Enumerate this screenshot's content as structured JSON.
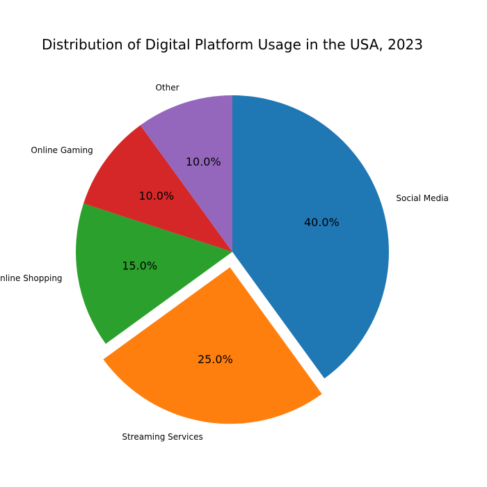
{
  "chart_data": {
    "type": "pie",
    "title": "Distribution of Digital Platform Usage in the USA, 2023",
    "categories": [
      "Social Media",
      "Streaming Services",
      "Online Shopping",
      "Online Gaming",
      "Other"
    ],
    "values": [
      40,
      25,
      15,
      10,
      10
    ],
    "percent_labels": [
      "40.0%",
      "25.0%",
      "15.0%",
      "10.0%",
      "10.0%"
    ],
    "colors": [
      "#1f77b4",
      "#ff7f0e",
      "#2ca02c",
      "#d62728",
      "#9467bd"
    ],
    "explode": [
      0,
      0.1,
      0,
      0,
      0
    ],
    "start_angle_deg": 90,
    "direction": "clockwise",
    "legend": "none"
  }
}
